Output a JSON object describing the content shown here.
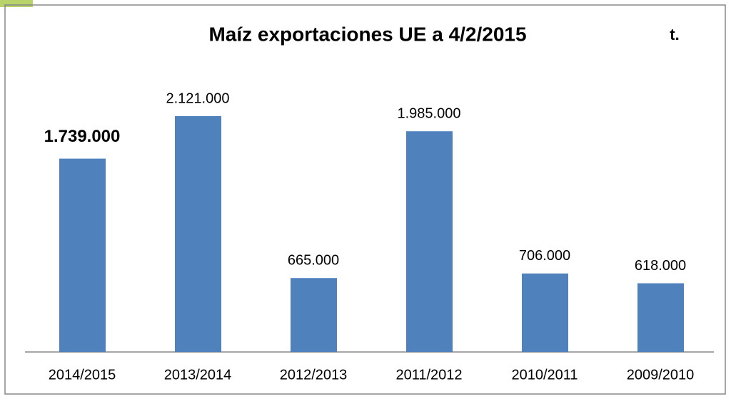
{
  "chart_data": {
    "type": "bar",
    "title": "Maíz exportaciones UE  a  4/2/2015",
    "unit": "t.",
    "categories": [
      "2014/2015",
      "2013/2014",
      "2012/2013",
      "2011/2012",
      "2010/2011",
      "2009/2010"
    ],
    "values": [
      1739000,
      2121000,
      665000,
      1985000,
      706000,
      618000
    ],
    "value_labels": [
      "1.739.000",
      "2.121.000",
      "665.000",
      "1.985.000",
      "706.000",
      "618.000"
    ],
    "value_label_colors": [
      "#ff0000",
      "#000000",
      "#000000",
      "#000000",
      "#000000",
      "#000000"
    ],
    "color": "#4f81bd"
  }
}
